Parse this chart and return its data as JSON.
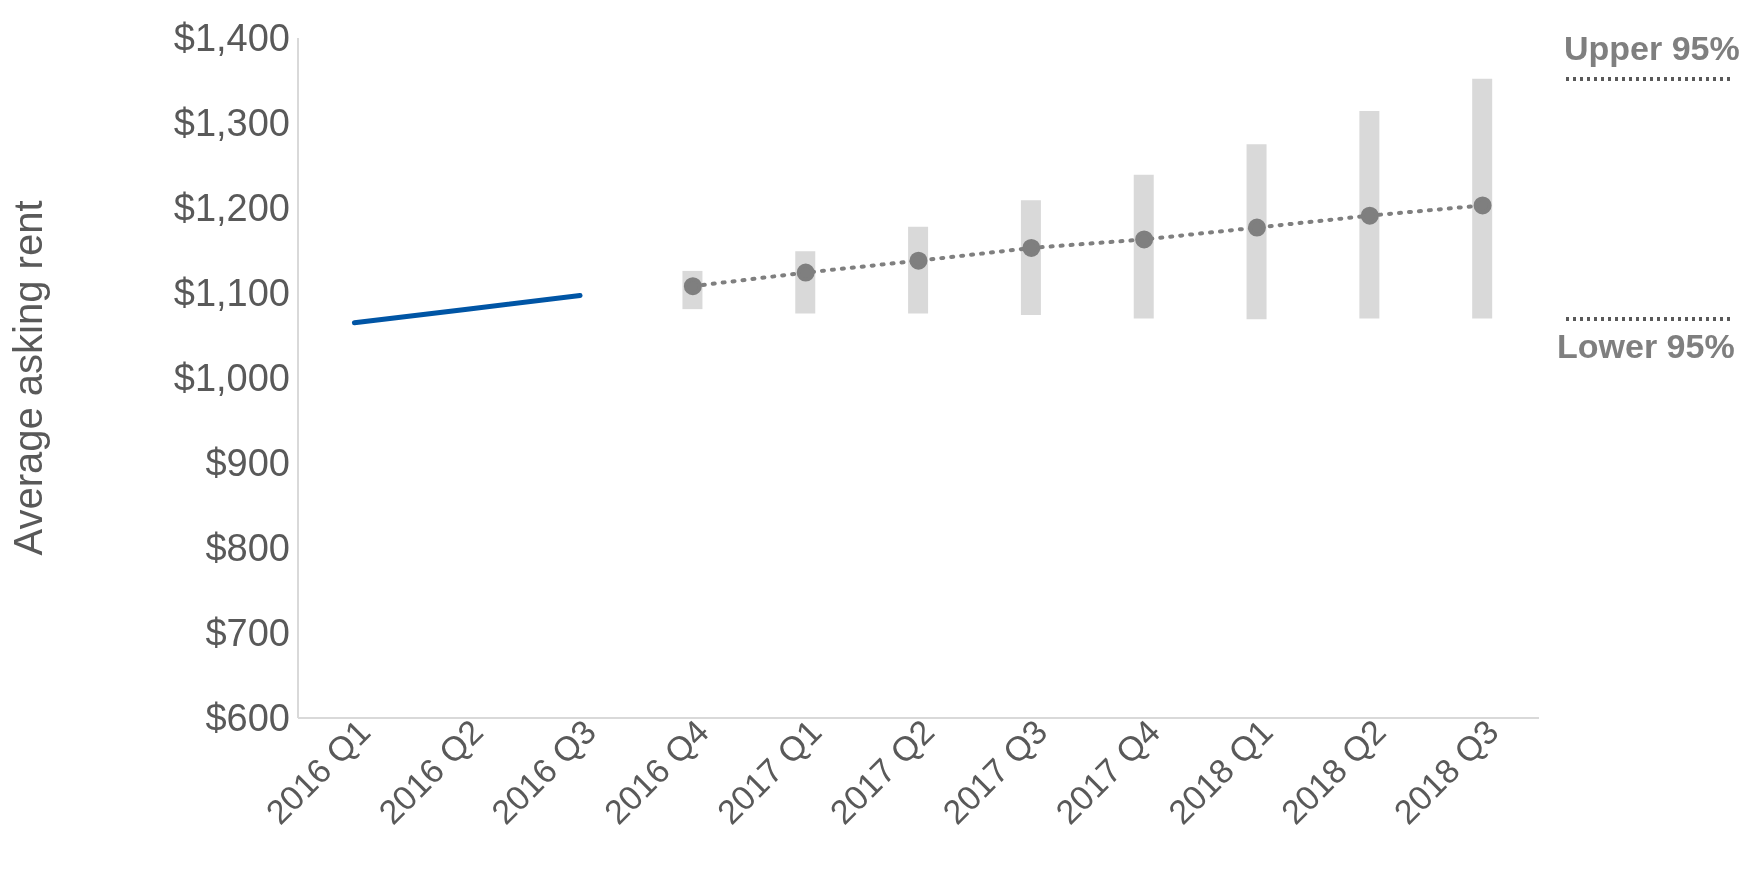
{
  "chart_data": {
    "type": "line",
    "ylabel": "Average asking rent",
    "categories": [
      "2016 Q1",
      "2016 Q2",
      "2016 Q3",
      "2016 Q4",
      "2017 Q1",
      "2017 Q2",
      "2017 Q3",
      "2017 Q4",
      "2018 Q1",
      "2018 Q2",
      "2018 Q3"
    ],
    "series": [
      {
        "type": "bar",
        "color": "#d9d9d9",
        "base": [
          null,
          null,
          null,
          1081,
          1076,
          1076,
          1074,
          1070,
          1069,
          1070,
          1070
        ],
        "values": [
          null,
          null,
          null,
          45,
          73,
          102,
          135,
          169,
          206,
          244,
          282
        ]
      },
      {
        "color": "#0055a5",
        "line_style": "solid",
        "marker": "none",
        "values": [
          1065,
          1081,
          1097,
          null,
          null,
          null,
          null,
          null,
          null,
          null,
          null
        ]
      },
      {
        "color": "#7f7f7f",
        "line_style": "dotted",
        "marker": "circle",
        "values": [
          null,
          null,
          null,
          1108,
          1124,
          1138,
          1153,
          1163,
          1177,
          1191,
          1203
        ]
      }
    ],
    "ylim": [
      600,
      1400
    ],
    "yticks": [
      {
        "value": 600,
        "label": "$600"
      },
      {
        "value": 700,
        "label": "$700"
      },
      {
        "value": 800,
        "label": "$800"
      },
      {
        "value": 900,
        "label": "$900"
      },
      {
        "value": 1000,
        "label": "$1,000"
      },
      {
        "value": 1100,
        "label": "$1,100"
      },
      {
        "value": 1200,
        "label": "$1,200"
      },
      {
        "value": 1300,
        "label": "$1,300"
      },
      {
        "value": 1400,
        "label": "$1,400"
      }
    ],
    "grid": false,
    "legend": false,
    "annotations": [
      "Upper 95%",
      "Lower 95%"
    ]
  }
}
